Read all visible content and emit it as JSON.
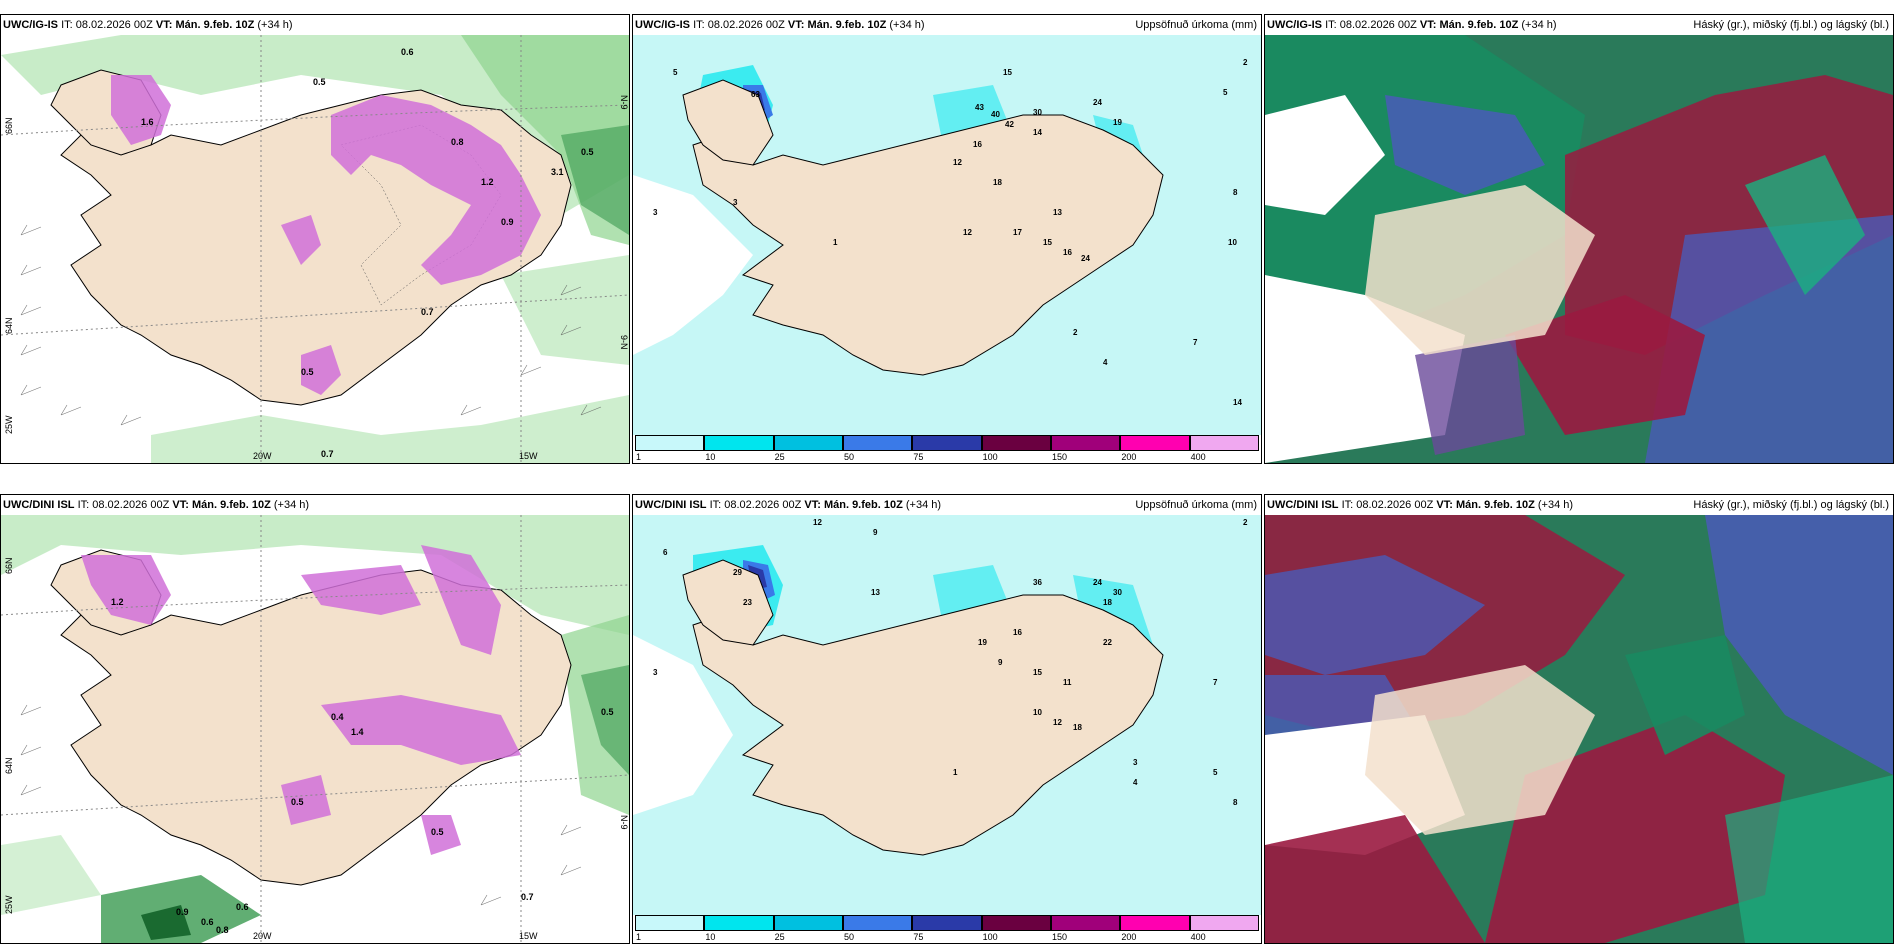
{
  "panels": [
    {
      "model": "UWC/IG-IS",
      "it_prefix": "IT:",
      "it": "08.02.2026 00Z",
      "vt_prefix": "VT:",
      "vt": "Mán. 9.feb. 10Z",
      "lead": "(+34 h)",
      "right_title": "",
      "axis_labels": [
        "20W",
        "15W",
        "66N",
        "64N",
        "25W",
        "N-9",
        "9-N"
      ],
      "values": [
        "0.5",
        "0.6",
        "0.5",
        "0.7",
        "0.8",
        "1.2",
        "0.9",
        "1.6",
        "3.1",
        "0.5",
        "0.7"
      ]
    },
    {
      "model": "UWC/IG-IS",
      "it_prefix": "IT:",
      "it": "08.02.2026 00Z",
      "vt_prefix": "VT:",
      "vt": "Mán. 9.feb. 10Z",
      "lead": "(+34 h)",
      "right_title": "Uppsöfnuð úrkoma (mm)",
      "values": [
        "5",
        "15",
        "3",
        "2",
        "5",
        "24",
        "19",
        "63",
        "43",
        "40",
        "42",
        "30",
        "12",
        "14",
        "16",
        "18",
        "13",
        "17",
        "15",
        "16",
        "24",
        "8",
        "10",
        "7",
        "4",
        "14",
        "3",
        "1",
        "2",
        "12"
      ]
    },
    {
      "model": "UWC/IG-IS",
      "it_prefix": "IT:",
      "it": "08.02.2026 00Z",
      "vt_prefix": "VT:",
      "vt": "Mán. 9.feb. 10Z",
      "lead": "(+34 h)",
      "right_title": "Háský (gr.), miðský (fj.bl.) og lágský (bl.)"
    },
    {
      "model": "UWC/DINI ISL",
      "it_prefix": "IT:",
      "it": "08.02.2026 00Z",
      "vt_prefix": "VT:",
      "vt": "Mán. 9.feb. 10Z",
      "lead": "(+34 h)",
      "right_title": "",
      "axis_labels": [
        "20W",
        "15W",
        "66N",
        "64N",
        "25W",
        "N-9"
      ],
      "values": [
        "0.5",
        "0.6",
        "0.4",
        "1.4",
        "0.5",
        "0.9",
        "0.8",
        "0.6",
        "0.7",
        "1.2",
        "0.5"
      ]
    },
    {
      "model": "UWC/DINI ISL",
      "it_prefix": "IT:",
      "it": "08.02.2026 00Z",
      "vt_prefix": "VT:",
      "vt": "Mán. 9.feb. 10Z",
      "lead": "(+34 h)",
      "right_title": "Uppsöfnuð úrkoma (mm)",
      "values": [
        "12",
        "9",
        "6",
        "3",
        "2",
        "13",
        "29",
        "23",
        "36",
        "24",
        "30",
        "18",
        "16",
        "19",
        "10",
        "12",
        "18",
        "22",
        "15",
        "11",
        "9",
        "1",
        "5",
        "8",
        "4",
        "7",
        "3"
      ]
    },
    {
      "model": "UWC/DINI ISL",
      "it_prefix": "IT:",
      "it": "08.02.2026 00Z",
      "vt_prefix": "VT:",
      "vt": "Mán. 9.feb. 10Z",
      "lead": "(+34 h)",
      "right_title": "Háský (gr.), miðský (fj.bl.) og lágský (bl.)"
    }
  ],
  "colorbar": {
    "labels": [
      "1",
      "10",
      "25",
      "50",
      "75",
      "100",
      "150",
      "200",
      "400"
    ],
    "colors": [
      "#c8f8fa",
      "#00e5ee",
      "#00c0e0",
      "#3a7ae8",
      "#2a3aa8",
      "#6a0040",
      "#a0007a",
      "#ff00b0",
      "#f0a8f0"
    ]
  },
  "colors": {
    "land": "#f3e1cc",
    "sea_light": "#c6f7f6",
    "precip_pink": "#d070d8",
    "snow_green": "#c2eac2",
    "cloud_green": "#1a8a60",
    "cloud_red": "#9a1a40",
    "cloud_blue": "#4a5ab8"
  }
}
